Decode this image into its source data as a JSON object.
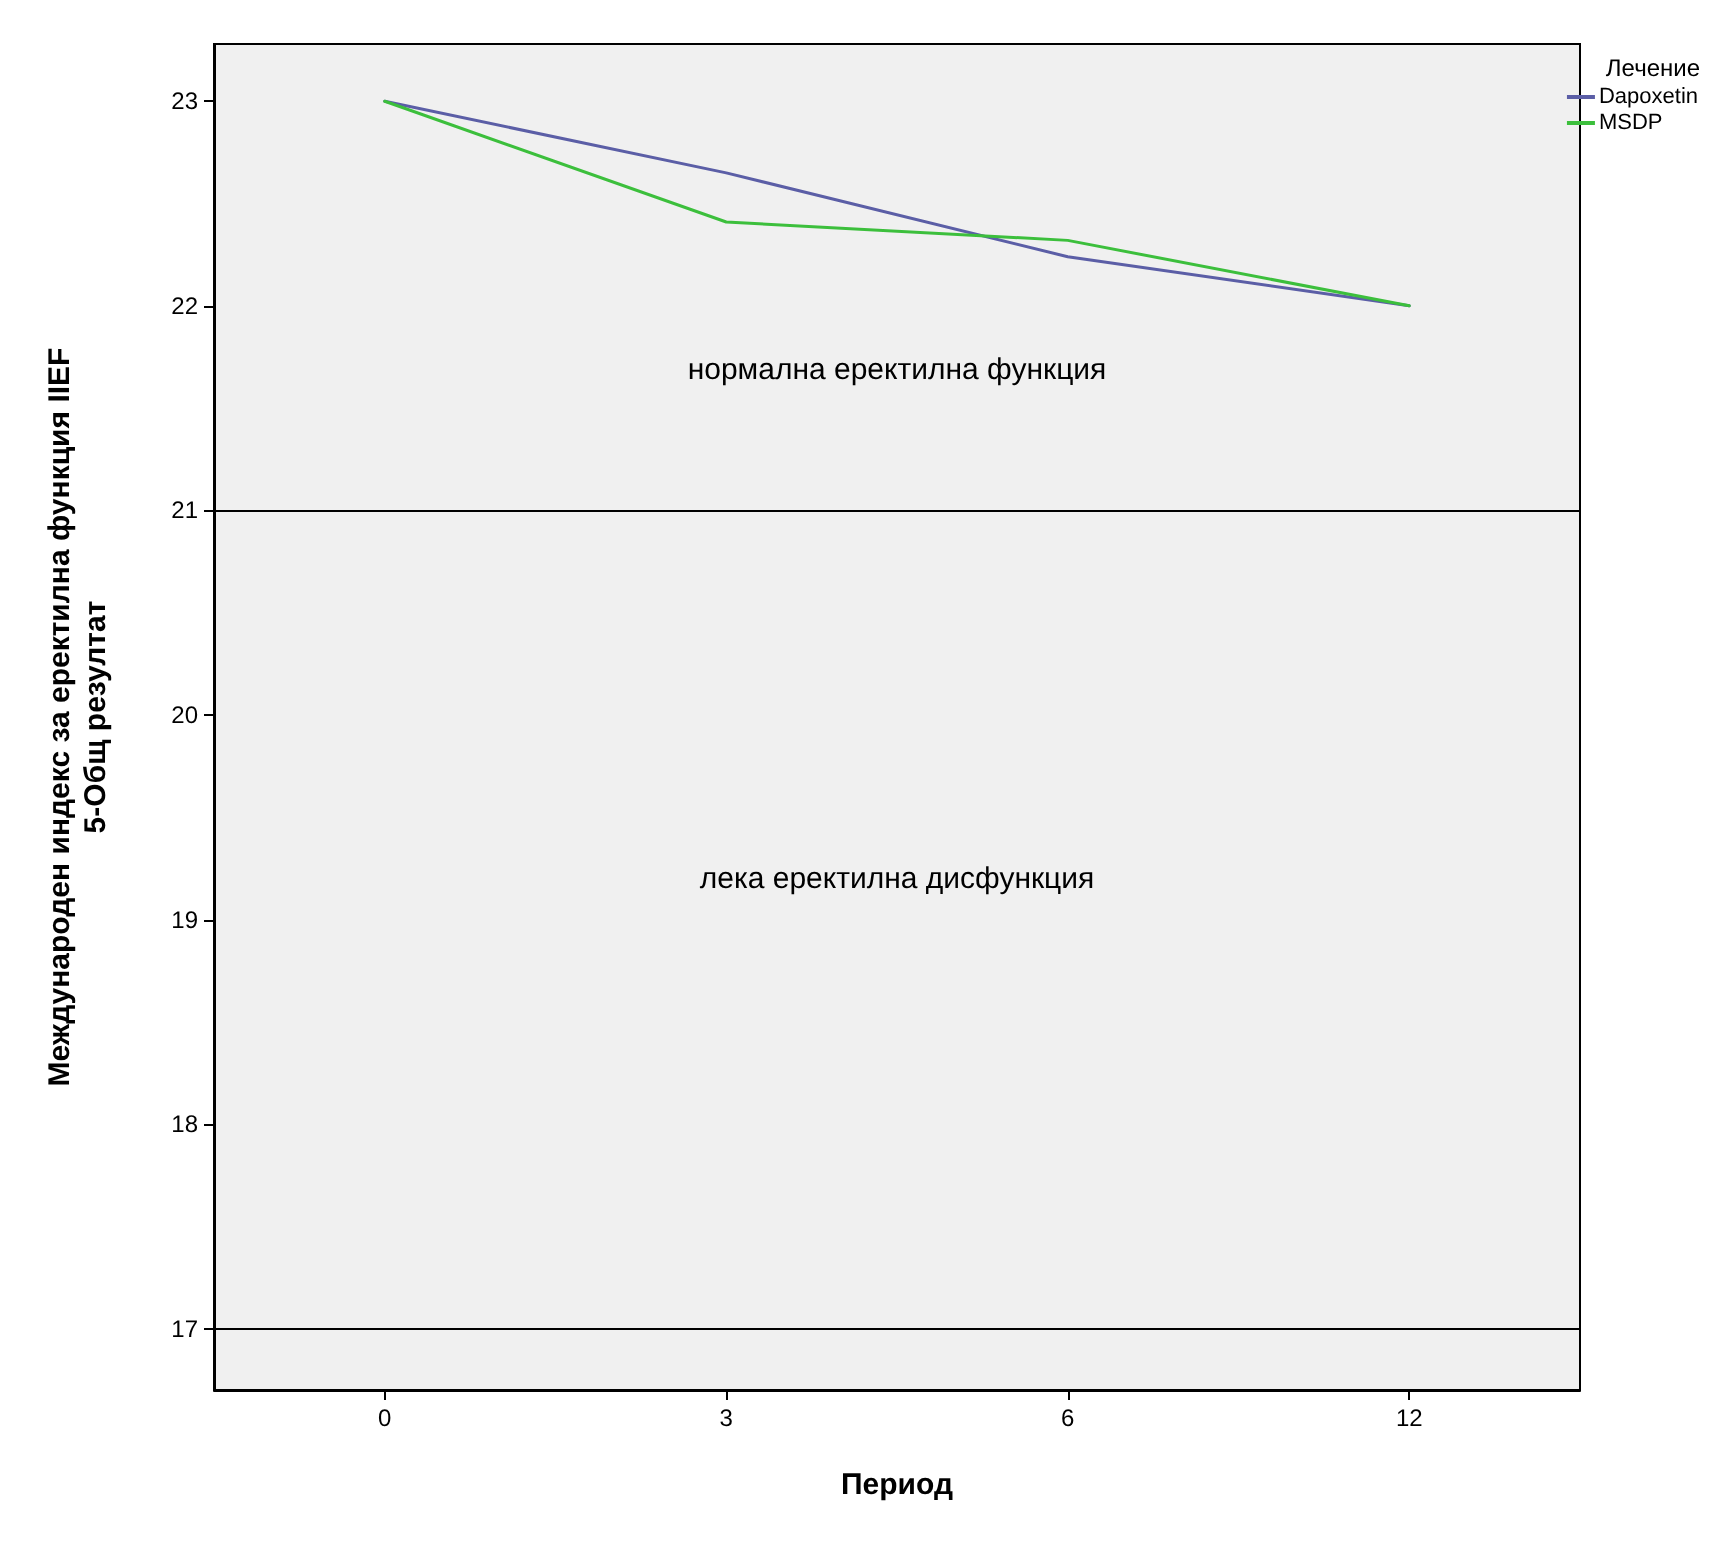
{
  "chart_data": {
    "type": "line",
    "xlabel": "Период",
    "ylabel": "Международен индекс за еректилна функция IIEF\n5-Общ резултат",
    "legend_title": "Лечение",
    "legend": "top right",
    "grid": false,
    "marker": "none",
    "line_style": "solid",
    "categories": [
      "0",
      "3",
      "6",
      "12"
    ],
    "series": [
      {
        "name": "Dapoxetin",
        "color": "#5b5ea6",
        "values": [
          23,
          22.65,
          22.24,
          22.0
        ]
      },
      {
        "name": "MSDP",
        "color": "#3cbf3c",
        "values": [
          23,
          22.41,
          22.32,
          22.0
        ]
      }
    ],
    "ylim": [
      16.7,
      23.28
    ],
    "yticks": [
      17,
      18,
      19,
      20,
      21,
      22,
      23
    ],
    "ref_lines": [
      {
        "axis": "y",
        "value": 21,
        "color": "#000000"
      },
      {
        "axis": "y",
        "value": 17,
        "color": "#000000"
      }
    ],
    "annotations": [
      "нормална еректилна функция",
      "лека еректилна дисфункция"
    ]
  }
}
